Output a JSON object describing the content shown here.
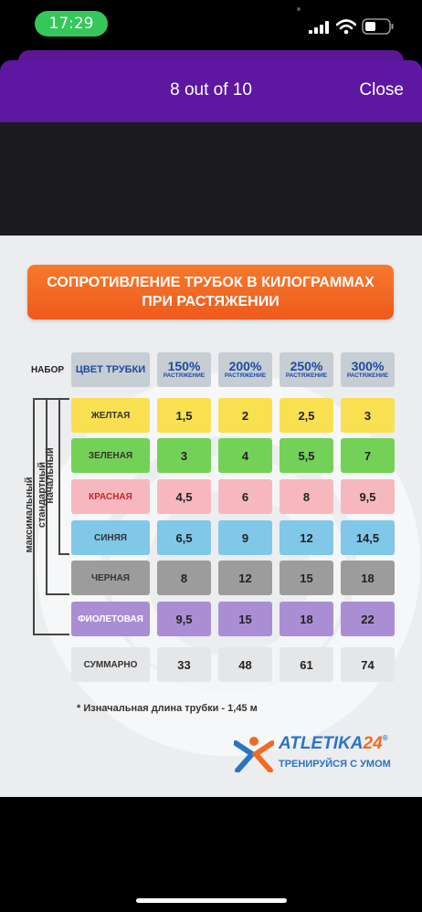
{
  "status_bar": {
    "time": "17:29"
  },
  "header": {
    "title": "8 out of 10",
    "close_label": "Close"
  },
  "image": {
    "title_line1": "СОПРОТИВЛЕНИЕ ТРУБОК В КИЛОГРАММАХ",
    "title_line2": "ПРИ РАСТЯЖЕНИИ",
    "set_label": "НАБОР",
    "color_header": "ЦВЕТ ТРУБКИ",
    "columns": [
      {
        "pct": "150%",
        "sub": "РАСТЯЖЕНИЕ"
      },
      {
        "pct": "200%",
        "sub": "РАСТЯЖЕНИЕ"
      },
      {
        "pct": "250%",
        "sub": "РАСТЯЖЕНИЕ"
      },
      {
        "pct": "300%",
        "sub": "РАСТЯЖЕНИЕ"
      }
    ],
    "rows": [
      {
        "name": "ЖЕЛТАЯ",
        "values": [
          "1,5",
          "2",
          "2,5",
          "3"
        ]
      },
      {
        "name": "ЗЕЛЕНАЯ",
        "values": [
          "3",
          "4",
          "5,5",
          "7"
        ]
      },
      {
        "name": "КРАСНАЯ",
        "values": [
          "4,5",
          "6",
          "8",
          "9,5"
        ]
      },
      {
        "name": "СИНЯЯ",
        "values": [
          "6,5",
          "9",
          "12",
          "14,5"
        ]
      },
      {
        "name": "ЧЕРНАЯ",
        "values": [
          "8",
          "12",
          "15",
          "18"
        ]
      },
      {
        "name": "ФИОЛЕТОВАЯ",
        "values": [
          "9,5",
          "15",
          "18",
          "22"
        ]
      }
    ],
    "total": {
      "name": "СУММАРНО",
      "values": [
        "33",
        "48",
        "61",
        "74"
      ]
    },
    "sets": {
      "max": "максимальный",
      "standard": "стандартный",
      "initial": "начальный"
    },
    "footnote": "* Изначальная длина трубки - 1,45 м",
    "brand_name": "ATLETIKA",
    "brand_num": "24",
    "brand_reg": "®",
    "brand_tagline": "ТРЕНИРУЙСЯ С УМОМ"
  }
}
